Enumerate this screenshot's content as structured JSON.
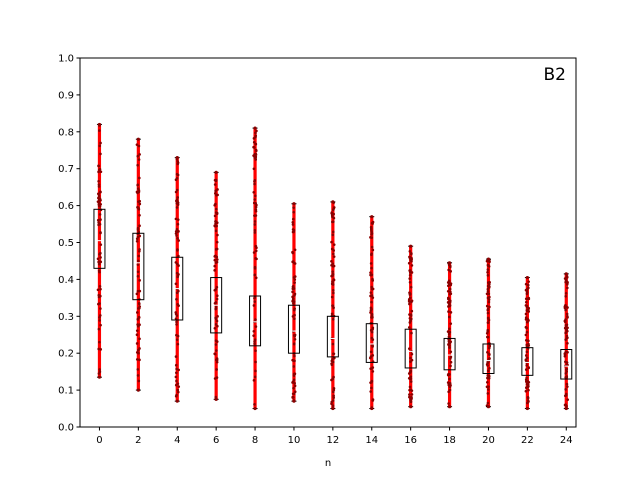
{
  "chart_data": {
    "type": "box",
    "panel_label": "B2",
    "xlabel": "n",
    "ylabel": "",
    "xlim": [
      -1,
      24.5
    ],
    "ylim": [
      0.0,
      1.0
    ],
    "x_ticks": [
      0,
      2,
      4,
      6,
      8,
      10,
      12,
      14,
      16,
      18,
      20,
      22,
      24
    ],
    "y_ticks": [
      0.0,
      0.1,
      0.2,
      0.3,
      0.4,
      0.5,
      0.6,
      0.7,
      0.8,
      0.9,
      1.0
    ],
    "y_tick_labels": [
      "0.0",
      "0.1",
      "0.2",
      "0.3",
      "0.4",
      "0.5",
      "0.6",
      "0.7",
      "0.8",
      "0.9",
      "1.0"
    ],
    "grid": false,
    "colors": {
      "points": "#ff0000",
      "box": "#000000",
      "median": "#ffffff",
      "outlier": "#8b0000"
    },
    "boxes": [
      {
        "x": 0,
        "min": 0.135,
        "q1": 0.43,
        "median": 0.505,
        "q3": 0.59,
        "max": 0.82
      },
      {
        "x": 2,
        "min": 0.1,
        "q1": 0.345,
        "median": 0.445,
        "q3": 0.525,
        "max": 0.78
      },
      {
        "x": 4,
        "min": 0.07,
        "q1": 0.29,
        "median": 0.375,
        "q3": 0.46,
        "max": 0.73
      },
      {
        "x": 6,
        "min": 0.075,
        "q1": 0.255,
        "median": 0.33,
        "q3": 0.405,
        "max": 0.69
      },
      {
        "x": 8,
        "min": 0.05,
        "q1": 0.22,
        "median": 0.285,
        "q3": 0.355,
        "max": 0.81
      },
      {
        "x": 10,
        "min": 0.07,
        "q1": 0.2,
        "median": 0.26,
        "q3": 0.33,
        "max": 0.605
      },
      {
        "x": 12,
        "min": 0.05,
        "q1": 0.19,
        "median": 0.24,
        "q3": 0.3,
        "max": 0.61
      },
      {
        "x": 14,
        "min": 0.05,
        "q1": 0.175,
        "median": 0.225,
        "q3": 0.28,
        "max": 0.57
      },
      {
        "x": 16,
        "min": 0.055,
        "q1": 0.16,
        "median": 0.205,
        "q3": 0.265,
        "max": 0.49
      },
      {
        "x": 18,
        "min": 0.055,
        "q1": 0.155,
        "median": 0.195,
        "q3": 0.24,
        "max": 0.445
      },
      {
        "x": 20,
        "min": 0.055,
        "q1": 0.145,
        "median": 0.18,
        "q3": 0.225,
        "max": 0.455
      },
      {
        "x": 22,
        "min": 0.05,
        "q1": 0.14,
        "median": 0.175,
        "q3": 0.215,
        "max": 0.405
      },
      {
        "x": 24,
        "min": 0.05,
        "q1": 0.13,
        "median": 0.165,
        "q3": 0.21,
        "max": 0.415
      }
    ]
  }
}
